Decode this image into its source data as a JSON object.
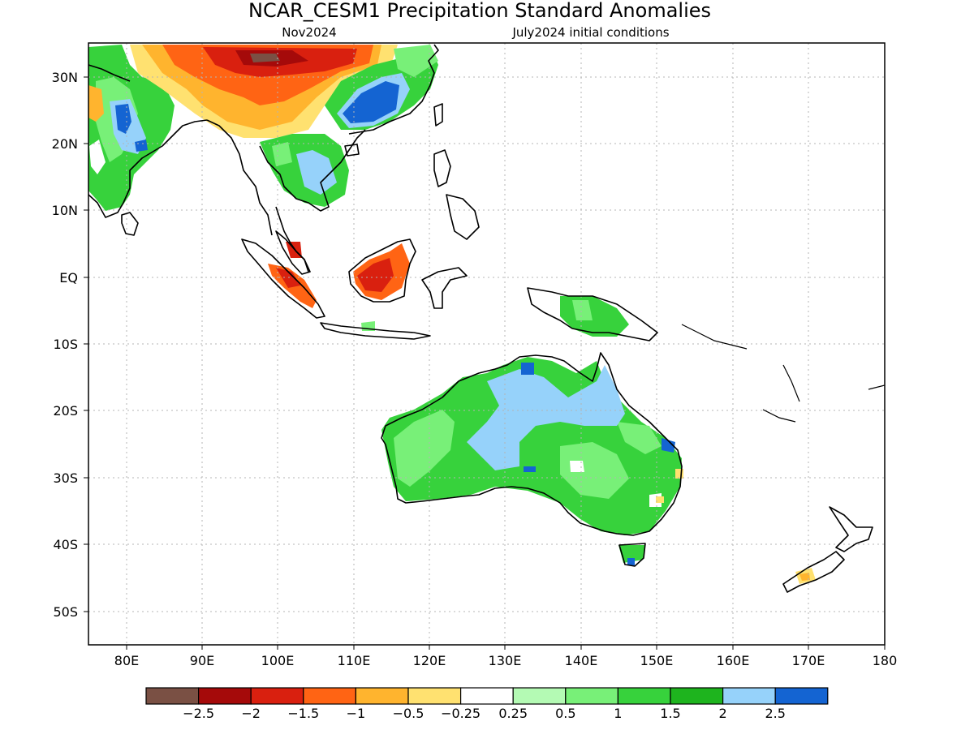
{
  "title": "NCAR_CESM1 Precipitation Standard Anomalies",
  "subtitle_left": "Nov2024",
  "subtitle_right": "July2024 initial conditions",
  "map": {
    "lon_range": [
      75,
      180
    ],
    "lat_range": [
      -55,
      35
    ],
    "lon_ticks": [
      "80E",
      "90E",
      "100E",
      "110E",
      "120E",
      "130E",
      "140E",
      "150E",
      "160E",
      "170E",
      "180"
    ],
    "lat_ticks": [
      "30N",
      "20N",
      "10N",
      "EQ",
      "10S",
      "20S",
      "30S",
      "40S",
      "50S"
    ]
  },
  "colorbar": {
    "colors": [
      "#7a5044",
      "#a50a0a",
      "#d9200f",
      "#ff6414",
      "#ffb42e",
      "#ffe170",
      "#ffffff",
      "#b4fab4",
      "#78f078",
      "#37d23c",
      "#1eb41e",
      "#96d2fa",
      "#1464d2"
    ],
    "labels": [
      "−2.5",
      "−2",
      "−1.5",
      "−1",
      "−0.5",
      "−0.25",
      "0.25",
      "0.5",
      "1",
      "1.5",
      "2",
      "2.5"
    ]
  }
}
